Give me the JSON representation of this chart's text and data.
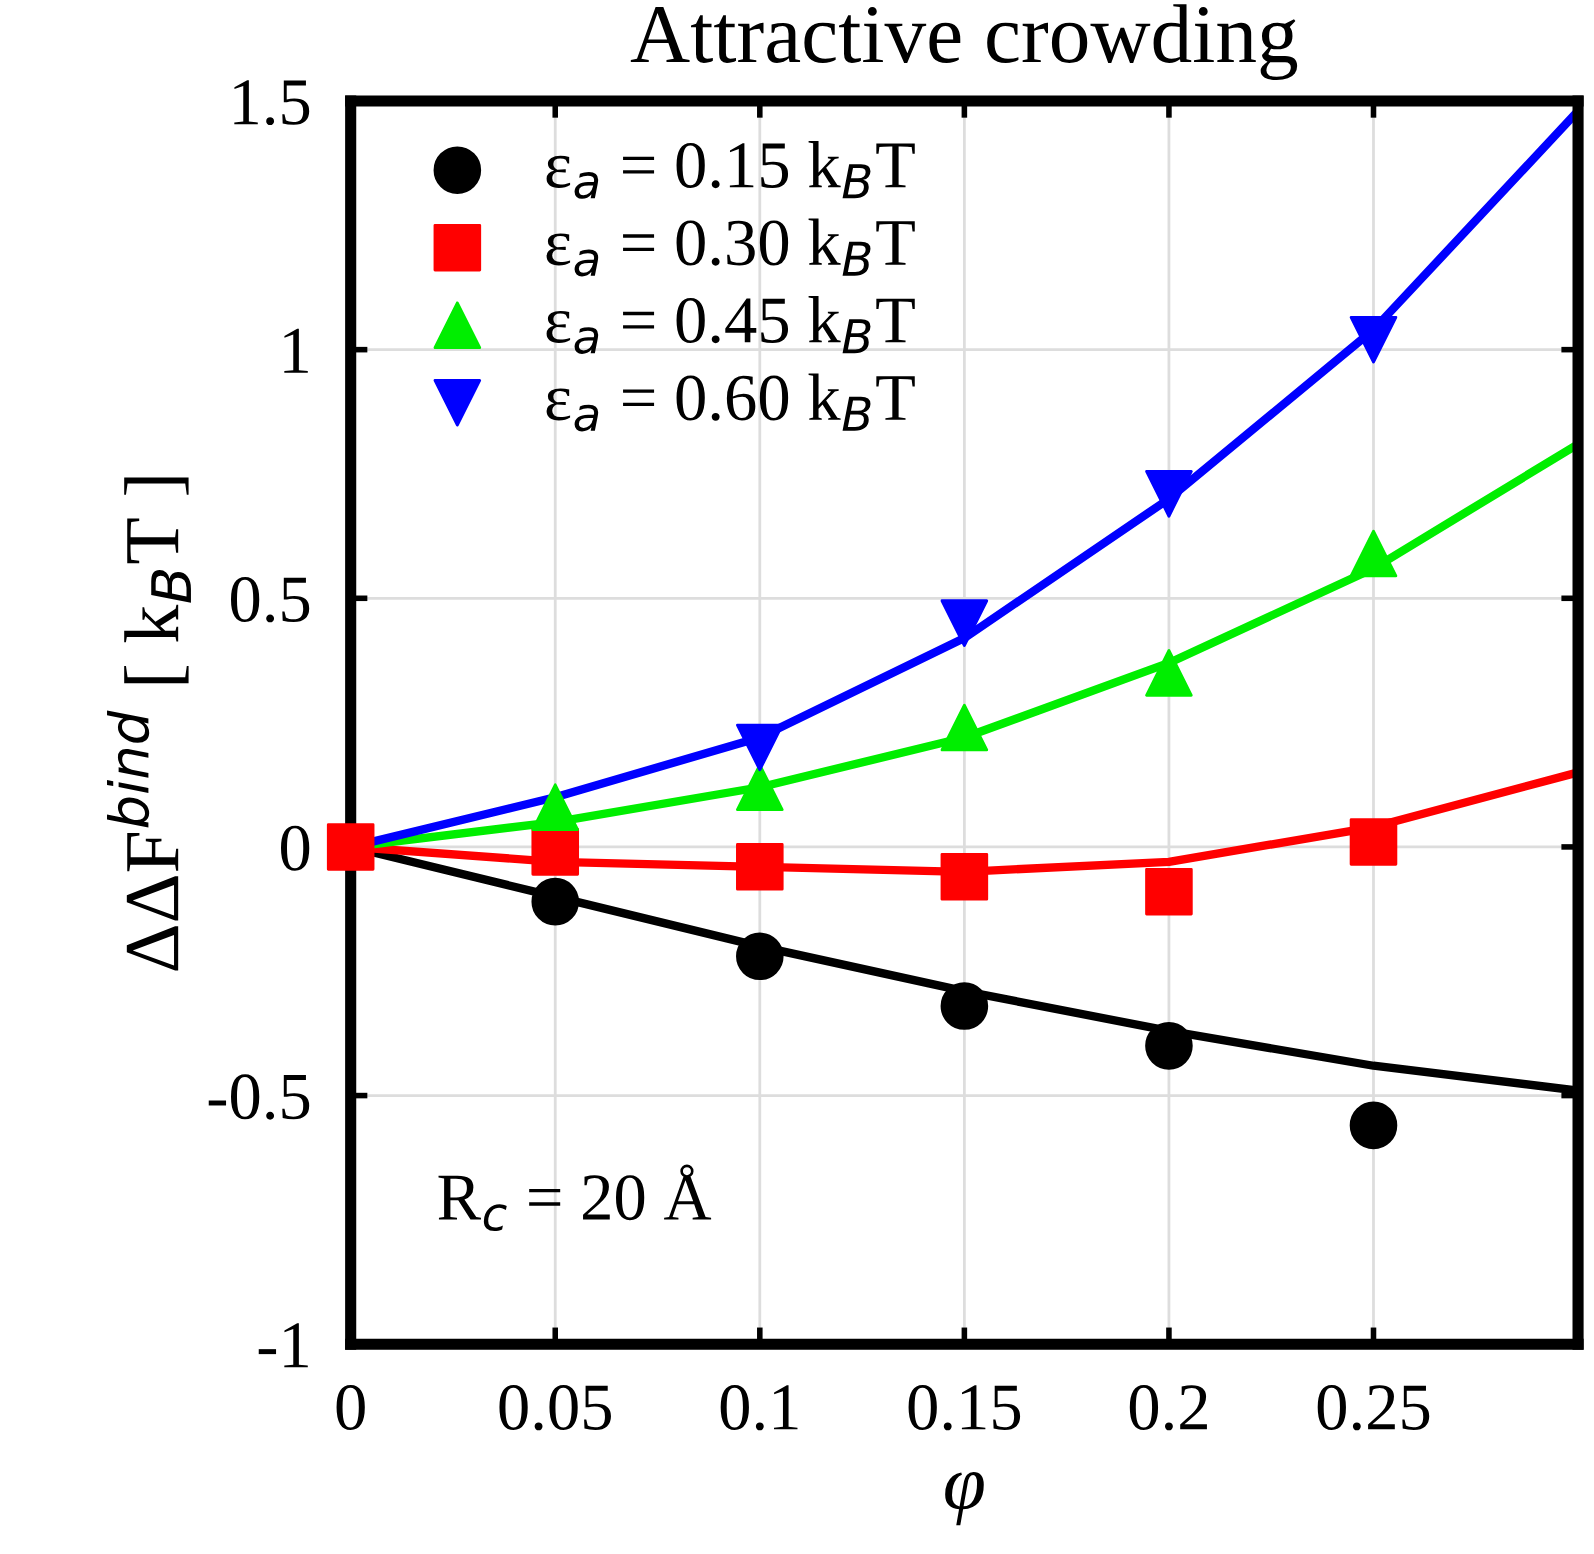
{
  "chart_data": {
    "type": "scatter",
    "title": "Attractive crowding",
    "xlabel": "φ",
    "ylabel": "ΔΔF$^{bind}$ [ k$_{B}$T ]",
    "xlim": [
      0,
      0.3
    ],
    "xticks": [
      0,
      0.05,
      0.1,
      0.15,
      0.2,
      0.25
    ],
    "ylim": [
      -1,
      1.5
    ],
    "yticks": [
      -1,
      -0.5,
      0,
      0.5,
      1,
      1.5
    ],
    "grid": true,
    "legend": "top left",
    "annotations": [
      {
        "text": "R$_{c}$ = 20 Å"
      }
    ],
    "series": [
      {
        "type": "line",
        "color": "#000000",
        "x": [
          0,
          0.05,
          0.1,
          0.15,
          0.2,
          0.25,
          0.3
        ],
        "values": [
          0,
          -0.1,
          -0.2,
          -0.29,
          -0.37,
          -0.44,
          -0.49
        ]
      },
      {
        "type": "line",
        "color": "#ff0000",
        "x": [
          0,
          0.05,
          0.1,
          0.15,
          0.2,
          0.25,
          0.3
        ],
        "values": [
          0,
          -0.03,
          -0.04,
          -0.05,
          -0.03,
          0.04,
          0.15
        ]
      },
      {
        "type": "line",
        "color": "#00ee00",
        "x": [
          0,
          0.05,
          0.1,
          0.15,
          0.2,
          0.25,
          0.3
        ],
        "values": [
          0,
          0.05,
          0.12,
          0.22,
          0.37,
          0.56,
          0.81
        ]
      },
      {
        "type": "line",
        "color": "#0000ff",
        "x": [
          0,
          0.05,
          0.1,
          0.15,
          0.2,
          0.25,
          0.3
        ],
        "values": [
          0,
          0.1,
          0.22,
          0.42,
          0.7,
          1.04,
          1.48
        ]
      },
      {
        "name": "ε$_{a}$ = 0.15 k$_{B}$T",
        "marker": "circle",
        "color": "#000000",
        "x": [
          0.05,
          0.1,
          0.15,
          0.2,
          0.25
        ],
        "values": [
          -0.11,
          -0.22,
          -0.32,
          -0.4,
          -0.56
        ]
      },
      {
        "name": "ε$_{a}$ = 0.30 k$_{B}$T",
        "marker": "square",
        "color": "#ff0000",
        "x": [
          0,
          0.05,
          0.1,
          0.15,
          0.2,
          0.25
        ],
        "values": [
          0,
          -0.01,
          -0.04,
          -0.06,
          -0.09,
          0.01
        ]
      },
      {
        "name": "ε$_{a}$ = 0.45 k$_{B}$T",
        "marker": "triangle",
        "color": "#00ee00",
        "x": [
          0.05,
          0.1,
          0.15,
          0.2,
          0.25
        ],
        "values": [
          0.08,
          0.12,
          0.24,
          0.35,
          0.59
        ]
      },
      {
        "name": "ε$_{a}$ = 0.60 k$_{B}$T",
        "marker": "triangle_down",
        "color": "#0000ff",
        "x": [
          0.1,
          0.15,
          0.2,
          0.25
        ],
        "values": [
          0.2,
          0.45,
          0.71,
          1.02
        ]
      }
    ]
  }
}
